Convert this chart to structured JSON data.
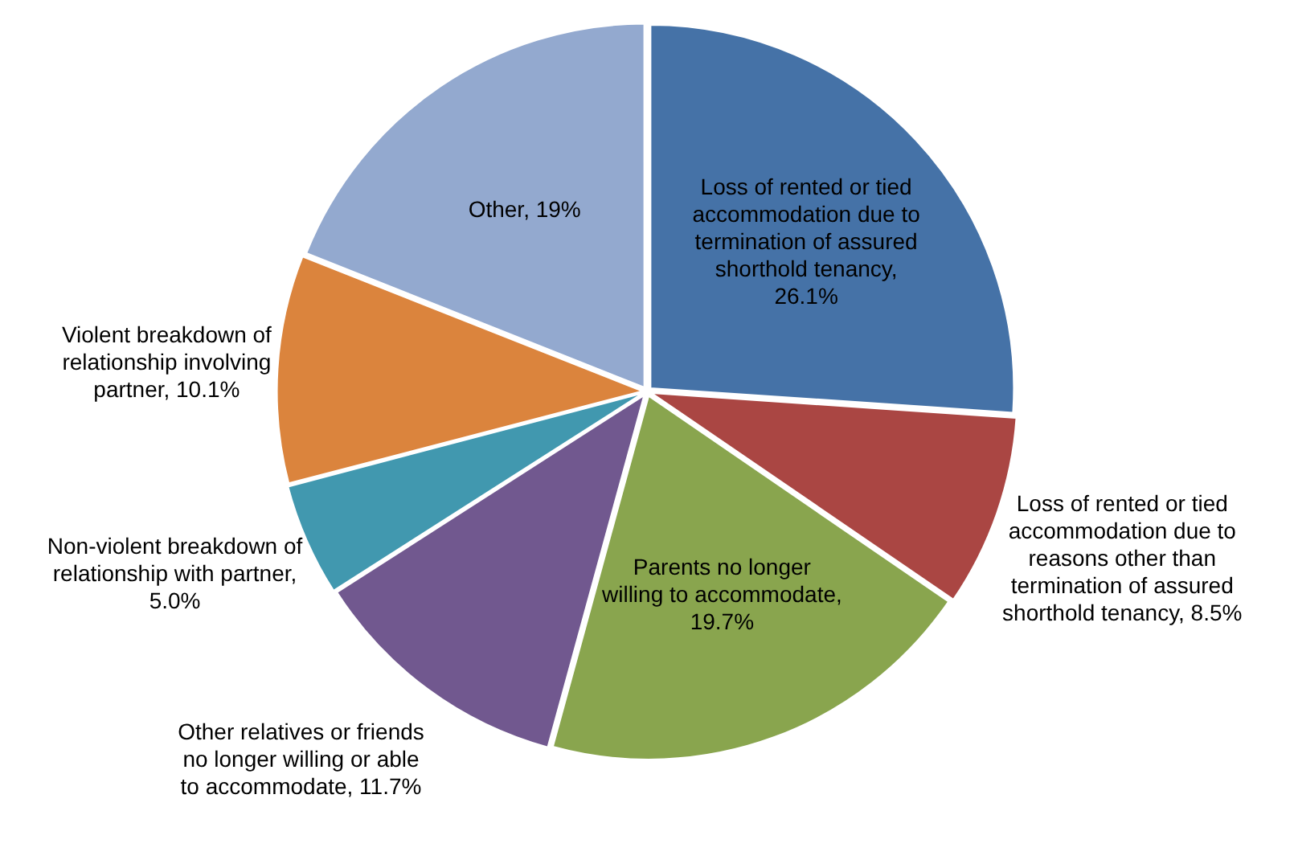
{
  "chart_data": {
    "type": "pie",
    "categories": [
      "Loss of rented or tied accommodation due to termination of assured shorthold tenancy, 26.1%",
      "Loss of rented or tied accommodation due to reasons other than termination of assured shorthold tenancy, 8.5%",
      "Parents no longer willing to accommodate, 19.7%",
      "Other relatives or friends no longer willing or able to accommodate, 11.7%",
      "Non-violent breakdown of relationship with partner, 5.0%",
      "Violent breakdown of relationship involving partner, 10.1%",
      "Other, 19%"
    ],
    "values": [
      26.1,
      8.5,
      19.7,
      11.7,
      5.0,
      10.1,
      19
    ],
    "colors": [
      "#4572a7",
      "#aa4643",
      "#89a54e",
      "#71588f",
      "#4198af",
      "#db843d",
      "#93a9cf"
    ],
    "legend": false
  }
}
